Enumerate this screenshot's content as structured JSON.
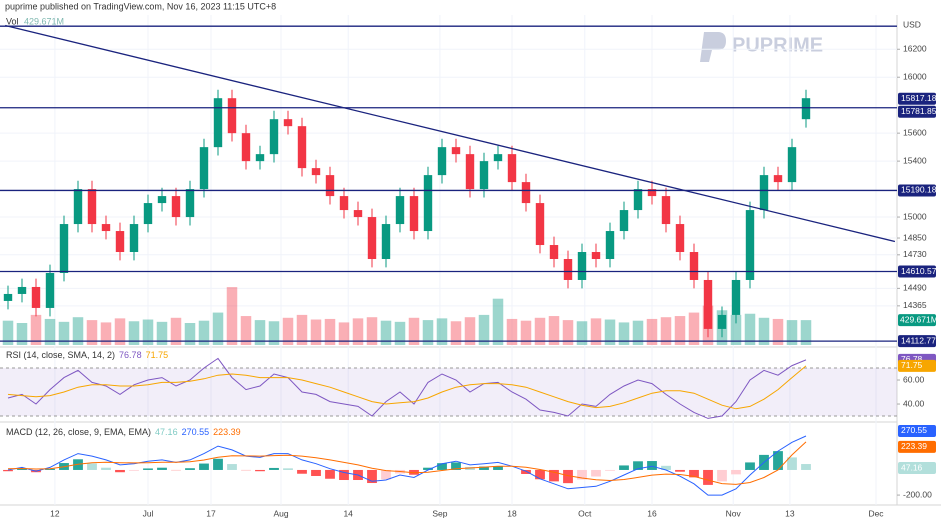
{
  "header": "puprime published on TradingView.com, Nov 16, 2023 11:15 UTC+8",
  "logo": "PUPRIME",
  "chart_data": {
    "type": "candlestick",
    "currency": "USD",
    "x": [
      0,
      2,
      4,
      6,
      8,
      10,
      12,
      14,
      16,
      18,
      20,
      22,
      24,
      26,
      28,
      30,
      32,
      34,
      36,
      38,
      40,
      42,
      44,
      46,
      48,
      50,
      52,
      54,
      56,
      58,
      60,
      62,
      64,
      66,
      68,
      70,
      72,
      74,
      76,
      78,
      80,
      82,
      84,
      86,
      88,
      90,
      92,
      94,
      96,
      98,
      100,
      102,
      104,
      106,
      108,
      110,
      112,
      114
    ],
    "open": [
      14400,
      14450,
      14500,
      14350,
      14600,
      14950,
      15200,
      14950,
      14900,
      14750,
      14950,
      15100,
      15150,
      15000,
      15200,
      15500,
      15850,
      15600,
      15400,
      15450,
      15700,
      15650,
      15350,
      15300,
      15150,
      15050,
      15000,
      14700,
      14950,
      15150,
      14900,
      15300,
      15500,
      15450,
      15200,
      15400,
      15450,
      15250,
      15100,
      14800,
      14700,
      14550,
      14750,
      14700,
      14900,
      15050,
      15200,
      15150,
      14950,
      14750,
      14550,
      14200,
      14300,
      14550,
      15050,
      15300,
      15250,
      15700
    ],
    "high": [
      14510,
      14560,
      14560,
      14660,
      15010,
      15260,
      15260,
      15010,
      14960,
      15010,
      15160,
      15210,
      15210,
      15260,
      15560,
      15910,
      15910,
      15660,
      15510,
      15760,
      15760,
      15710,
      15410,
      15360,
      15210,
      15110,
      15060,
      15010,
      15210,
      15210,
      15360,
      15560,
      15560,
      15510,
      15460,
      15510,
      15510,
      15310,
      15160,
      14860,
      14760,
      14810,
      14810,
      14960,
      15110,
      15260,
      15260,
      15210,
      15010,
      14810,
      14610,
      14360,
      14610,
      15110,
      15360,
      15360,
      15560,
      15910
    ],
    "low": [
      14340,
      14390,
      14290,
      14290,
      14540,
      14890,
      14890,
      14840,
      14690,
      14690,
      14890,
      15040,
      14940,
      14940,
      15140,
      15440,
      15540,
      15340,
      15340,
      15390,
      15590,
      15290,
      15240,
      15090,
      14990,
      14940,
      14640,
      14640,
      14890,
      14840,
      14840,
      15240,
      15390,
      15140,
      15140,
      15340,
      15190,
      15040,
      14740,
      14640,
      14490,
      14490,
      14640,
      14640,
      14840,
      14990,
      15090,
      14890,
      14690,
      14490,
      14140,
      14140,
      14240,
      14490,
      14990,
      15190,
      15190,
      15640
    ],
    "close": [
      14450,
      14500,
      14350,
      14600,
      14950,
      15200,
      14950,
      14900,
      14750,
      14950,
      15100,
      15150,
      15000,
      15200,
      15500,
      15850,
      15600,
      15400,
      15450,
      15700,
      15650,
      15350,
      15300,
      15150,
      15050,
      15000,
      14700,
      14950,
      15150,
      14900,
      15300,
      15500,
      15450,
      15200,
      15400,
      15450,
      15250,
      15100,
      14800,
      14700,
      14550,
      14750,
      14700,
      14900,
      15050,
      15200,
      15150,
      14950,
      14750,
      14550,
      14200,
      14300,
      14550,
      15050,
      15300,
      15250,
      15500,
      15850
    ],
    "up_color": "#089981",
    "down_color": "#f23645",
    "xlim": [
      0,
      127
    ],
    "xticks": [
      {
        "value": 6.7,
        "label": "12"
      },
      {
        "value": 20,
        "label": "Jul"
      },
      {
        "value": 29,
        "label": "17"
      },
      {
        "value": 39,
        "label": "Aug"
      },
      {
        "value": 48.6,
        "label": "14"
      },
      {
        "value": 61.7,
        "label": "Sep"
      },
      {
        "value": 72,
        "label": "18"
      },
      {
        "value": 82.4,
        "label": "Oct"
      },
      {
        "value": 92,
        "label": "16"
      },
      {
        "value": 103.6,
        "label": "Nov"
      },
      {
        "value": 111.7,
        "label": "13"
      },
      {
        "value": 124,
        "label": "Dec"
      }
    ],
    "ylim": [
      14085,
      16445
    ],
    "yticks": [
      16200,
      16000,
      15600,
      15400,
      15000,
      14850,
      14730,
      14490,
      14365
    ],
    "levels": [
      16365,
      15781.85,
      15190.18,
      14610.57,
      14112.77
    ],
    "level_color": "#1a237e",
    "trendline": {
      "x": [
        -0.4,
        126.7
      ],
      "values": [
        16370,
        14825
      ],
      "color": "#1a237e"
    },
    "price_labels": [
      15817.18,
      15781.85,
      15190.18,
      14610.57,
      14112.77
    ],
    "volume": {
      "name": "Vol",
      "last_label": "429.671M",
      "ylim": [
        0,
        5700
      ],
      "values": [
        420,
        380,
        520,
        450,
        400,
        480,
        430,
        390,
        460,
        410,
        440,
        400,
        470,
        380,
        420,
        560,
        1000,
        500,
        430,
        410,
        470,
        520,
        440,
        450,
        390,
        460,
        480,
        420,
        400,
        470,
        430,
        460,
        410,
        480,
        520,
        800,
        450,
        420,
        470,
        500,
        430,
        410,
        460,
        440,
        390,
        420,
        450,
        480,
        500,
        560,
        680,
        600,
        520,
        540,
        470,
        450,
        430,
        429.671
      ]
    },
    "rsi": {
      "title": "RSI (14, close, SMA, 14, 2)",
      "ylim": [
        26.7,
        85
      ],
      "levels": [
        30,
        70
      ],
      "yticks": [
        {
          "value": 60,
          "label": "60.00"
        },
        {
          "value": 40,
          "label": "40.00"
        }
      ],
      "series": [
        {
          "color": "#7e57c2",
          "values": [
            45,
            48,
            40,
            52,
            62,
            68,
            58,
            55,
            48,
            56,
            60,
            62,
            55,
            60,
            70,
            78,
            62,
            52,
            55,
            65,
            62,
            50,
            48,
            42,
            40,
            38,
            30,
            42,
            50,
            40,
            58,
            65,
            60,
            50,
            57,
            58,
            50,
            44,
            35,
            33,
            30,
            40,
            38,
            48,
            55,
            60,
            57,
            48,
            40,
            33,
            28,
            30,
            42,
            60,
            68,
            64,
            72,
            76.78
          ]
        },
        {
          "color": "#f7a600",
          "values": [
            48,
            47,
            46,
            47,
            50,
            54,
            56,
            56,
            55,
            55,
            56,
            58,
            58,
            59,
            61,
            64,
            65,
            64,
            62,
            62,
            62,
            60,
            57,
            54,
            50,
            46,
            42,
            40,
            41,
            42,
            45,
            50,
            54,
            56,
            57,
            57,
            56,
            54,
            50,
            46,
            42,
            39,
            37,
            38,
            41,
            45,
            49,
            51,
            51,
            49,
            44,
            39,
            36,
            38,
            44,
            52,
            62,
            71.75
          ]
        }
      ]
    },
    "macd": {
      "title": "MACD (12, 26, close, 9, EMA, EMA)",
      "ylim": [
        -279,
        358
      ],
      "yticks": [
        {
          "value": -200,
          "label": "-200.00"
        }
      ],
      "histogram": [
        -10,
        8,
        -18,
        10,
        55,
        85,
        52,
        18,
        -18,
        -6,
        12,
        18,
        -2,
        14,
        51,
        89,
        47,
        -2,
        -10,
        16,
        13,
        -30,
        -48,
        -70,
        -80,
        -80,
        -104,
        -75,
        -28,
        -38,
        18,
        54,
        60,
        24,
        27,
        30,
        0,
        -32,
        -74,
        -91,
        -105,
        -76,
        -52,
        -6,
        36,
        69,
        71,
        33,
        -14,
        -59,
        -119,
        -91,
        -35,
        60,
        120,
        150,
        100,
        47.16
      ],
      "series": [
        {
          "color": "#2962ff",
          "values": [
            0,
            20,
            -10,
            20,
            80,
            130,
            110,
            80,
            40,
            50,
            70,
            80,
            60,
            80,
            130,
            190,
            160,
            110,
            100,
            130,
            130,
            80,
            50,
            10,
            -20,
            -40,
            -90,
            -80,
            -40,
            -60,
            0,
            50,
            70,
            40,
            50,
            60,
            30,
            -10,
            -70,
            -110,
            -150,
            -140,
            -130,
            -90,
            -40,
            10,
            30,
            0,
            -50,
            -110,
            -200,
            -200,
            -150,
            -40,
            60,
            150,
            220,
            270.55
          ]
        },
        {
          "color": "#ff6d00",
          "values": [
            10,
            12,
            8,
            10,
            25,
            45,
            58,
            62,
            58,
            56,
            58,
            62,
            62,
            66,
            79,
            101,
            113,
            112,
            110,
            114,
            117,
            110,
            98,
            80,
            60,
            40,
            14,
            -5,
            -12,
            -22,
            -18,
            -4,
            10,
            16,
            23,
            30,
            30,
            22,
            4,
            -19,
            -45,
            -64,
            -78,
            -84,
            -76,
            -59,
            -41,
            -33,
            -36,
            -51,
            -81,
            -109,
            -115,
            -100,
            -60,
            0,
            120,
            223.39
          ]
        }
      ]
    }
  }
}
